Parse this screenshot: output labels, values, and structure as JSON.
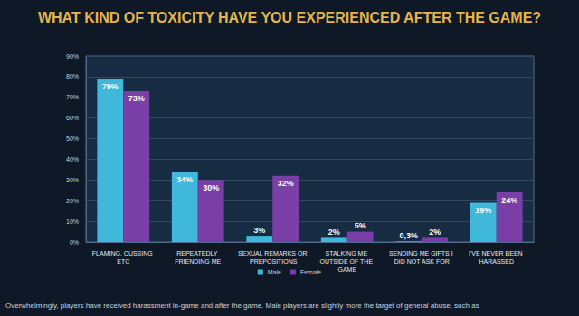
{
  "chart_data": {
    "type": "bar",
    "title": "WHAT KIND OF TOXICITY HAVE YOU EXPERIENCED AFTER THE GAME?",
    "categories": [
      "FLAMING, CUSSING ETC",
      "REPEATEDLY FRIENDING ME",
      "SEXUAL REMARKS OR PREPOSITIONS",
      "STALKING ME OUTSIDE OF THE GAME",
      "SENDING ME GIFTS I DID NOT ASK FOR",
      "I'VE NEVER BEEN HARASSED"
    ],
    "series": [
      {
        "name": "Male",
        "color": "#3fb8dc",
        "values": [
          79,
          34,
          3,
          2,
          0.3,
          19
        ],
        "value_labels": [
          "79%",
          "34%",
          "3%",
          "2%",
          "0,3%",
          "19%"
        ]
      },
      {
        "name": "Female",
        "color": "#7a3fa6",
        "values": [
          73,
          30,
          32,
          5,
          2,
          24
        ],
        "value_labels": [
          "73%",
          "30%",
          "32%",
          "5%",
          "2%",
          "24%"
        ]
      }
    ],
    "ylim": [
      0,
      90
    ],
    "yticks": [
      {
        "value": 0,
        "label": "0%"
      },
      {
        "value": 10,
        "label": "10%"
      },
      {
        "value": 20,
        "label": "20%"
      },
      {
        "value": 30,
        "label": "30%"
      },
      {
        "value": 40,
        "label": "40%"
      },
      {
        "value": 50,
        "label": "50%"
      },
      {
        "value": 60,
        "label": "60%"
      },
      {
        "value": 70,
        "label": "70%"
      },
      {
        "value": 80,
        "label": "80%"
      },
      {
        "value": 90,
        "label": "90%"
      }
    ],
    "grid": true,
    "legend": "bottom",
    "data_labels": true,
    "annotations": [
      "Overwhelmingly, players have received harassment in-game and after the game. Male players are slightly more the target of general abuse, such as"
    ]
  }
}
